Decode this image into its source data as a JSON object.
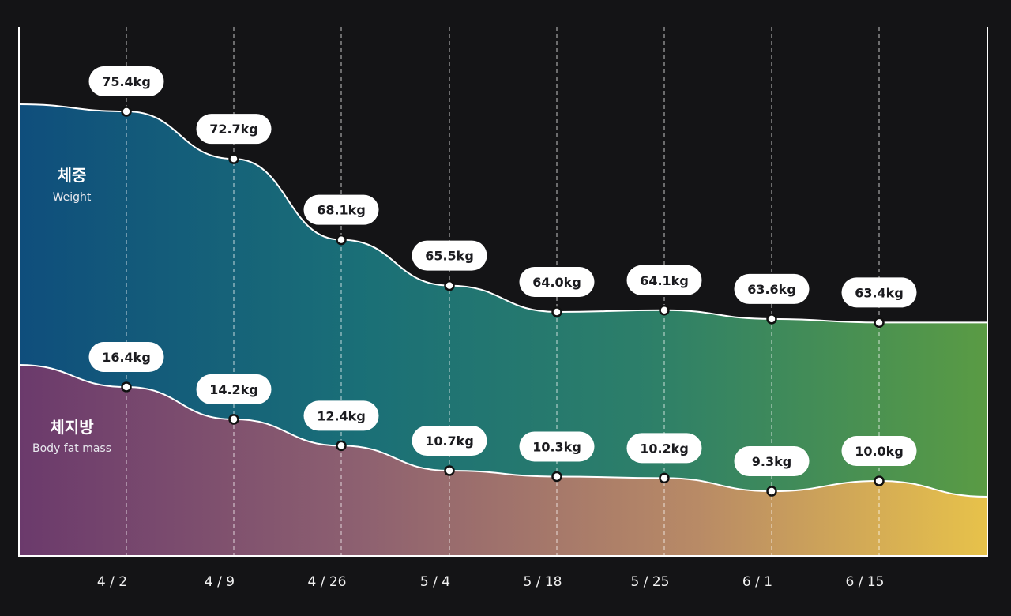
{
  "chart_data": {
    "type": "area",
    "x": [
      "4 / 2",
      "4 / 9",
      "4 / 26",
      "5 / 4",
      "5 / 18",
      "5 / 25",
      "6 / 1",
      "6 / 15"
    ],
    "series": [
      {
        "name": "체중",
        "subtitle": "Weight",
        "values": [
          75.4,
          72.7,
          68.1,
          65.5,
          64.0,
          64.1,
          63.6,
          63.4
        ],
        "labels": [
          "75.4kg",
          "72.7kg",
          "68.1kg",
          "65.5kg",
          "64.0kg",
          "64.1kg",
          "63.6kg",
          "63.4kg"
        ]
      },
      {
        "name": "체지방",
        "subtitle": "Body fat mass",
        "values": [
          16.4,
          14.2,
          12.4,
          10.7,
          10.3,
          10.2,
          9.3,
          10.0
        ],
        "labels": [
          "16.4kg",
          "14.2kg",
          "12.4kg",
          "10.7kg",
          "10.3kg",
          "10.2kg",
          "9.3kg",
          "10.0kg"
        ]
      }
    ],
    "colors": {
      "background": "#141416",
      "weight_gradient": [
        "#0f4e7c",
        "#1a6f77",
        "#2d7f69",
        "#5a9b44"
      ],
      "fat_gradient": [
        "#6b3a6c",
        "#8d6070",
        "#b88a66",
        "#e7c24a"
      ],
      "line": "#ffffff",
      "pill": "#ffffff",
      "pill_text": "#1b1b1f"
    }
  }
}
